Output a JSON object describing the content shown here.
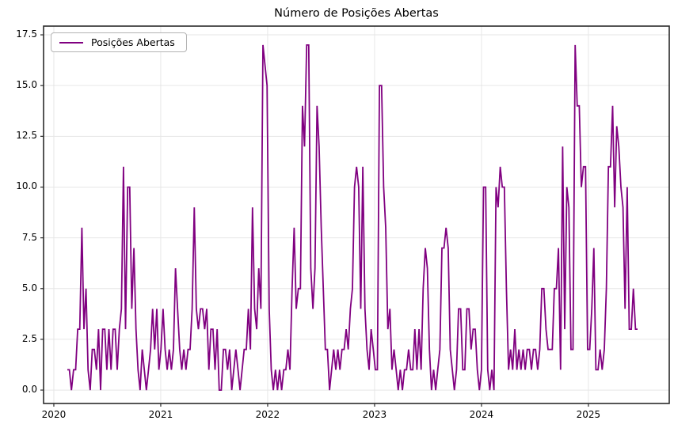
{
  "chart_data": {
    "type": "line",
    "title": "Número de Posições Abertas",
    "xlabel": "",
    "ylabel": "",
    "grid": true,
    "grid_color": "#e6e6e6",
    "background": "#ffffff",
    "spine_color": "#2b2b2b",
    "legend": {
      "position": "upper-left",
      "entries": [
        "Posições Abertas"
      ]
    },
    "xlim": [
      2019.904,
      2025.756
    ],
    "ylim": [
      -0.66,
      17.93
    ],
    "x_ticks": {
      "values": [
        2020,
        2021,
        2022,
        2023,
        2024,
        2025
      ],
      "labels": [
        "2020",
        "2021",
        "2022",
        "2023",
        "2024",
        "2025"
      ]
    },
    "y_ticks": {
      "values": [
        0,
        2.5,
        5,
        7.5,
        10,
        12.5,
        15,
        17.5
      ],
      "labels": [
        "0.0",
        "2.5",
        "5.0",
        "7.5",
        "10.0",
        "12.5",
        "15.0",
        "17.5"
      ]
    },
    "series": [
      {
        "name": "Posições Abertas",
        "color": "#800080",
        "line_width": 1.8,
        "x_start": 2020.126,
        "x_step": 0.019466,
        "values": [
          1,
          1,
          0,
          1,
          1,
          3,
          3,
          8,
          3,
          5,
          1,
          0,
          2,
          2,
          1,
          3,
          0,
          3,
          3,
          1,
          3,
          1,
          3,
          3,
          1,
          3,
          4,
          11,
          3,
          10,
          10,
          4,
          7,
          3,
          1,
          0,
          2,
          1,
          0,
          1,
          2,
          4,
          2,
          4,
          1,
          2,
          4,
          2,
          1,
          2,
          1,
          2,
          6,
          4,
          2,
          1,
          2,
          1,
          2,
          2,
          4,
          9,
          4,
          3,
          4,
          4,
          3,
          4,
          1,
          3,
          3,
          1,
          3,
          0,
          0,
          2,
          2,
          1,
          2,
          0,
          1,
          2,
          1,
          0,
          1,
          2,
          2,
          4,
          2,
          9,
          4,
          3,
          6,
          4,
          17,
          16,
          15,
          4,
          1,
          0,
          1,
          0,
          1,
          0,
          1,
          1,
          2,
          1,
          5,
          8,
          4,
          5,
          5,
          14,
          12,
          17,
          17,
          6,
          4,
          6,
          14,
          12,
          8,
          5,
          2,
          2,
          0,
          1,
          2,
          1,
          2,
          1,
          2,
          2,
          3,
          2,
          4,
          5,
          10,
          11,
          10,
          4,
          11,
          4,
          2,
          1,
          3,
          2,
          1,
          1,
          15,
          15,
          10,
          8,
          3,
          4,
          1,
          2,
          1,
          0,
          1,
          0,
          1,
          1,
          2,
          1,
          1,
          3,
          1,
          3,
          1,
          5,
          7,
          6,
          2,
          0,
          1,
          0,
          1,
          2,
          7,
          7,
          8,
          7,
          2,
          1,
          0,
          1,
          4,
          4,
          1,
          1,
          4,
          4,
          2,
          3,
          3,
          1,
          0,
          1,
          10,
          10,
          1,
          0,
          1,
          0,
          10,
          9,
          11,
          10,
          10,
          5,
          1,
          2,
          1,
          3,
          1,
          2,
          1,
          2,
          1,
          2,
          2,
          1,
          2,
          2,
          1,
          2,
          5,
          5,
          3,
          2,
          2,
          2,
          5,
          5,
          7,
          1,
          12,
          3,
          10,
          9,
          2,
          2,
          17,
          14,
          14,
          10,
          11,
          11,
          2,
          2,
          4,
          7,
          1,
          1,
          2,
          1,
          2,
          5,
          11,
          11,
          14,
          9,
          13,
          12,
          10,
          9,
          4,
          10,
          3,
          3,
          5,
          3,
          3
        ]
      }
    ]
  }
}
